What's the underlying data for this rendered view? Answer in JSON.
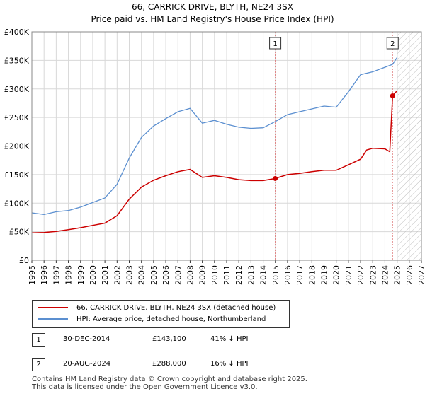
{
  "chart_data": {
    "type": "line",
    "title": "66, CARRICK DRIVE, BLYTH, NE24 3SX",
    "subtitle": "Price paid vs. HM Land Registry's House Price Index (HPI)",
    "xlim": [
      1995,
      2027
    ],
    "ylim": [
      0,
      400000
    ],
    "xticks": [
      1995,
      1996,
      1997,
      1998,
      1999,
      2000,
      2001,
      2002,
      2003,
      2004,
      2005,
      2006,
      2007,
      2008,
      2009,
      2010,
      2011,
      2012,
      2013,
      2014,
      2015,
      2016,
      2017,
      2018,
      2019,
      2020,
      2021,
      2022,
      2023,
      2024,
      2025,
      2026,
      2027
    ],
    "yticks": [
      {
        "value": 0,
        "label": "£0"
      },
      {
        "value": 50000,
        "label": "£50K"
      },
      {
        "value": 100000,
        "label": "£100K"
      },
      {
        "value": 150000,
        "label": "£150K"
      },
      {
        "value": 200000,
        "label": "£200K"
      },
      {
        "value": 250000,
        "label": "£250K"
      },
      {
        "value": 300000,
        "label": "£300K"
      },
      {
        "value": 350000,
        "label": "£350K"
      },
      {
        "value": 400000,
        "label": "£400K"
      }
    ],
    "grid": true,
    "future_hatch_from": 2025.0,
    "series": [
      {
        "name": "66, CARRICK DRIVE, BLYTH, NE24 3SX (detached house)",
        "color": "#cc0000",
        "x": [
          1995.0,
          1996.0,
          1997.0,
          1998.0,
          1999.0,
          2000.0,
          2001.0,
          2002.0,
          2003.0,
          2004.0,
          2005.0,
          2006.0,
          2007.0,
          2008.0,
          2009.0,
          2010.0,
          2011.0,
          2012.0,
          2013.0,
          2014.0,
          2014.99,
          2016.0,
          2017.0,
          2018.0,
          2019.0,
          2020.0,
          2021.0,
          2022.0,
          2022.5,
          2023.0,
          2024.0,
          2024.4,
          2024.63,
          2025.0
        ],
        "y": [
          48000,
          48500,
          50500,
          53500,
          57000,
          61000,
          65000,
          78000,
          107000,
          128000,
          140000,
          148000,
          155000,
          159000,
          145000,
          148000,
          145000,
          141000,
          139500,
          139500,
          143100,
          150000,
          152000,
          155000,
          157500,
          157500,
          167000,
          177000,
          193000,
          196000,
          195000,
          190000,
          288000,
          297000
        ]
      },
      {
        "name": "HPI: Average price, detached house, Northumberland",
        "color": "#5b8fd0",
        "x": [
          1995.0,
          1996.0,
          1997.0,
          1998.0,
          1999.0,
          2000.0,
          2001.0,
          2002.0,
          2003.0,
          2004.0,
          2005.0,
          2006.0,
          2007.0,
          2008.0,
          2009.0,
          2010.0,
          2011.0,
          2012.0,
          2013.0,
          2014.0,
          2015.0,
          2016.0,
          2017.0,
          2018.0,
          2019.0,
          2020.0,
          2021.0,
          2022.0,
          2023.0,
          2024.0,
          2024.63,
          2025.0
        ],
        "y": [
          83000,
          80000,
          85000,
          87000,
          93000,
          101000,
          109000,
          133000,
          179000,
          215000,
          235000,
          248000,
          260000,
          266000,
          240000,
          245000,
          238000,
          233000,
          231000,
          232000,
          243000,
          255000,
          260000,
          265000,
          270000,
          268000,
          295000,
          325000,
          330000,
          338000,
          343000,
          355000
        ]
      }
    ],
    "annotations": [
      {
        "label": "1",
        "x": 2014.99,
        "y": 143100
      },
      {
        "label": "2",
        "x": 2024.63,
        "y": 288000
      }
    ]
  },
  "legend": {
    "items": [
      {
        "label": "66, CARRICK DRIVE, BLYTH, NE24 3SX (detached house)",
        "color": "#cc0000"
      },
      {
        "label": "HPI: Average price, detached house, Northumberland",
        "color": "#5b8fd0"
      }
    ]
  },
  "sales": [
    {
      "num": "1",
      "date": "30-DEC-2014",
      "price": "£143,100",
      "hpi": "41% ↓ HPI"
    },
    {
      "num": "2",
      "date": "20-AUG-2024",
      "price": "£288,000",
      "hpi": "16% ↓ HPI"
    }
  ],
  "footer": {
    "line1": "Contains HM Land Registry data © Crown copyright and database right 2025.",
    "line2": "This data is licensed under the Open Government Licence v3.0."
  }
}
